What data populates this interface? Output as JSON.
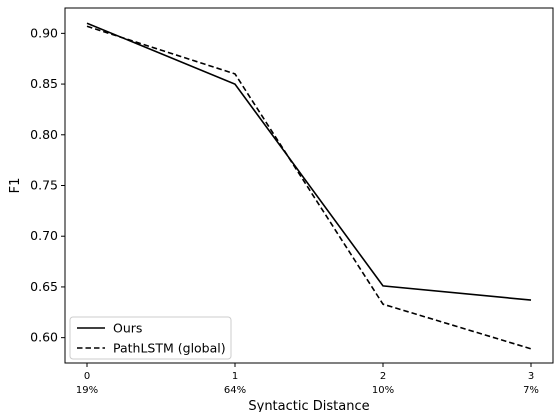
{
  "chart_data": {
    "type": "line",
    "title": "",
    "xlabel": "Syntactic Distance",
    "ylabel": "F1",
    "x": [
      0,
      1,
      2,
      3
    ],
    "x_sublabels": [
      "19%",
      "64%",
      "10%",
      "7%"
    ],
    "ylim": [
      0.575,
      0.925
    ],
    "yticks": [
      0.6,
      0.65,
      0.7,
      0.75,
      0.8,
      0.85,
      0.9
    ],
    "ytick_labels": [
      "0.60",
      "0.65",
      "0.70",
      "0.75",
      "0.80",
      "0.85",
      "0.90"
    ],
    "grid": false,
    "legend_position": "lower-left",
    "series": [
      {
        "name": "Ours",
        "values": [
          0.91,
          0.85,
          0.651,
          0.637
        ],
        "style": "solid",
        "color": "#000000"
      },
      {
        "name": "PathLSTM (global)",
        "values": [
          0.907,
          0.86,
          0.633,
          0.589
        ],
        "style": "dashed",
        "color": "#000000"
      }
    ]
  }
}
